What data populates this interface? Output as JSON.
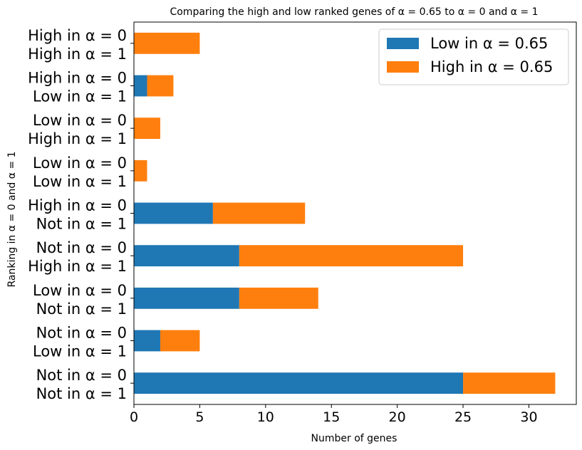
{
  "chart_data": {
    "type": "bar",
    "orientation": "horizontal",
    "stacked": true,
    "title": "Comparing the high and low ranked genes of α = 0.65 to α = 0 and α = 1",
    "xlabel": "Number of genes",
    "ylabel": "Ranking in α = 0 and α = 1",
    "xlim": [
      0,
      33.6
    ],
    "x_ticks": [
      0,
      5,
      10,
      15,
      20,
      25,
      30
    ],
    "categories": [
      [
        "Not in α = 0",
        "Not in α = 1"
      ],
      [
        "Not in α = 0",
        "Low in α = 1"
      ],
      [
        "Low in α = 0",
        "Not in α = 1"
      ],
      [
        "Not in α = 0",
        "High in α = 1"
      ],
      [
        "High in α = 0",
        "Not in α = 1"
      ],
      [
        "Low in α = 0",
        "Low in α = 1"
      ],
      [
        "Low in α = 0",
        "High in α = 1"
      ],
      [
        "High in α = 0",
        "Low in α = 1"
      ],
      [
        "High in α = 0",
        "High in α = 1"
      ]
    ],
    "series": [
      {
        "name": "Low in α = 0.65",
        "color": "#1f77b4",
        "values": [
          25,
          2,
          8,
          8,
          6,
          0,
          0,
          1,
          0
        ]
      },
      {
        "name": "High in α = 0.65",
        "color": "#ff7f0e",
        "values": [
          7,
          3,
          6,
          17,
          7,
          1,
          2,
          2,
          5
        ]
      }
    ],
    "legend": "top-right",
    "grid": false
  }
}
